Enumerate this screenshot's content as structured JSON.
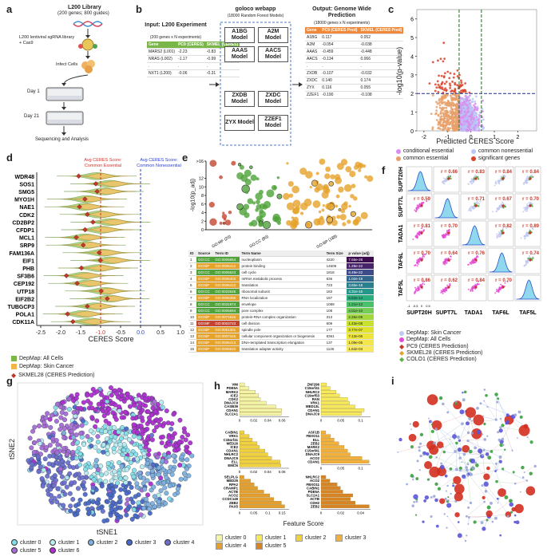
{
  "panels": {
    "a": "a",
    "b": "b",
    "c": "c",
    "d": "d",
    "e": "e",
    "f": "f",
    "g": "g",
    "h": "h",
    "i": "i"
  },
  "panel_a": {
    "library_title": "L200 Library",
    "library_sub": "(200 genes; 800 guides)",
    "lentiviral": "L200 lentiviral sgRNA library + Cas9",
    "infect": "Infect Cells",
    "day1": "Day 1",
    "day21": "Day 21",
    "seq": "Sequencing and Analysis"
  },
  "panel_b": {
    "input_title": "Input: L200 Experiment",
    "input_sub": "(200 genes x N experiments)",
    "input_headers": [
      "Gene",
      "PC9 (CERES)",
      "SKMEL (CERES)"
    ],
    "input_rows": [
      [
        "MARS2 (L001)",
        "-2.23",
        "-0.83"
      ],
      [
        "NRAS (L002)",
        "-1.17",
        "-0.99"
      ],
      [
        ".",
        ".",
        "."
      ],
      [
        "NXT1 (L200)",
        "-0.06",
        "-0.31"
      ]
    ],
    "webapp_title": "goloco webapp",
    "webapp_sub": "(18000 Random Forest Models)",
    "models": [
      "A1BG Model",
      "A2M Model",
      "AAAS Model",
      "AACS Model",
      "ZXDB Model",
      "ZXDC Model",
      "ZYX Model",
      "ZZEF1 Model"
    ],
    "output_title": "Output: Genome Wide Prediction",
    "output_sub": "(18000 genes x N experiments)",
    "output_headers": [
      "Gene",
      "PC9 (CERES Pred)",
      "SKMEL (CERES Pred)"
    ],
    "output_rows": [
      [
        "A1BG",
        "0.117",
        "0.052"
      ],
      [
        "A2M",
        "-0.054",
        "-0.038"
      ],
      [
        "AAAS",
        "-0.459",
        "-0.448"
      ],
      [
        "AACS",
        "-0.134",
        "0.066"
      ],
      [
        ".",
        ".",
        "."
      ],
      [
        "ZXDB",
        "-0.107",
        "-0.032"
      ],
      [
        "ZXDC",
        "0.140",
        "0.174"
      ],
      [
        "ZYX",
        "0.116",
        "0.055"
      ],
      [
        "ZZEF1",
        "-0.190",
        "-0.108"
      ]
    ]
  },
  "panel_c": {
    "ylabel": "-log10(p-value)",
    "xlabel": "Predicted CERES Score",
    "xticks": [
      "-2",
      "-1",
      "0",
      "1",
      "2"
    ],
    "yticks": [
      "0",
      "1",
      "2",
      "3",
      "4",
      "5",
      "6"
    ],
    "legend": [
      "conditional essential",
      "common nonessential",
      "common essential",
      "significant genes"
    ],
    "colors": {
      "cond": "#d98cf0",
      "noness": "#b9c7f5",
      "common": "#e8a06a",
      "sig": "#d9432a"
    }
  },
  "panel_d": {
    "genes": [
      "WDR48",
      "SOS1",
      "SMG5",
      "MYO1H",
      "NAE1",
      "CDK2",
      "CD2BP2",
      "CFDP1",
      "MCL1",
      "SRP9",
      "FAM136A",
      "EIF1",
      "PHB",
      "SF3B6",
      "CEP192",
      "UTP18",
      "EIF2B2",
      "TUBGCP3",
      "POLA1",
      "CDK11A"
    ],
    "avg_common_ess": "Avg CERES Score: Common Essential",
    "avg_common_noness": "Avg CERES Score: Common Nonessential",
    "xticks": [
      "-2.5",
      "-2.0",
      "-1.5",
      "-1.0",
      "-0.5",
      "0.0",
      "0.5",
      "1.0"
    ],
    "xlabel": "CERES Score",
    "legend": [
      "DepMap: All Cells",
      "DepMap: Skin Cancer",
      "SKMEL28 (CERES Prediction)"
    ]
  },
  "panel_e": {
    "ylabel": "-log10(p_adj)",
    "yticks": [
      "0",
      "2",
      "4",
      "6",
      "8",
      "10",
      "12",
      ">16"
    ],
    "groups": [
      "GO:MF (20)",
      "GO:CC (80)",
      "GO:BP (188)"
    ],
    "table_headers": [
      "ID",
      "Source",
      "Term ID",
      "Term Name",
      "Term Size",
      "p value (adj)"
    ],
    "table_rows": [
      [
        "1",
        "GO:CC",
        "GO:0005654",
        "nucleoplasm",
        "4220",
        "7.55e-28"
      ],
      [
        "2",
        "GO:BP",
        "GO:0006412",
        "protein binding",
        "14609",
        "1.29e-22"
      ],
      [
        "3",
        "GO:CC",
        "GO:0005623",
        "cell cycle",
        "1818",
        "8.49e-22"
      ],
      [
        "4",
        "GO:BP",
        "GO:0006403",
        "mRNA metabolic process",
        "836",
        "1.02e-19"
      ],
      [
        "5",
        "GO:BP",
        "GO:0006412",
        "translation",
        "723",
        "3.65e-18"
      ],
      [
        "6",
        "GO:CC",
        "GO:0022626",
        "ribosomal subunit",
        "183",
        "4.31e-16"
      ],
      [
        "7",
        "GO:BP",
        "GO:0006396",
        "RNA localization",
        "187",
        "6.52e-14"
      ],
      [
        "8",
        "GO:CC",
        "GO:0031974",
        "envelope",
        "1089",
        "1.21e-12"
      ],
      [
        "9",
        "GO:CC",
        "GO:0005694",
        "pore complex",
        "108",
        "4.01e-10"
      ],
      [
        "10",
        "GO:BP",
        "GO:0071826",
        "protein-RNA complex organization",
        "313",
        "2.26e-09"
      ],
      [
        "11",
        "GO:MF",
        "GO:0003723",
        "cell division",
        "609",
        "1.43e-08"
      ],
      [
        "12",
        "GO:BP",
        "GO:0051301",
        "spindle pole",
        "177",
        "3.77e-07"
      ],
      [
        "13",
        "GO:BP",
        "GO:0007346",
        "cellular component organization or biogenesis",
        "8361",
        "7.13e-06"
      ],
      [
        "14",
        "GO:BP",
        "GO:0006413",
        "DNA-templated transcription elongation",
        "137",
        "1.09e-05"
      ],
      [
        "15",
        "GO:BP",
        "GO:0006810",
        "translation adapter activity",
        "1136",
        "1.64e-04"
      ]
    ]
  },
  "panel_f": {
    "genes": [
      "SUPT20H",
      "SUPT7L",
      "TADA1",
      "TAF6L",
      "TAF5L"
    ],
    "r_values": [
      [
        "",
        "0.66",
        "0.83",
        "0.84",
        "0.84"
      ],
      [
        "0.59",
        "",
        "0.71",
        "0.67",
        "0.70"
      ],
      [
        "0.81",
        "0.70",
        "",
        "0.82",
        "0.89"
      ],
      [
        "0.70",
        "0.64",
        "0.76",
        "",
        "0.74"
      ],
      [
        "0.86",
        "0.62",
        "0.84",
        "0.70",
        ""
      ]
    ],
    "legend": [
      "DepMap: Skin Cancer",
      "DepMap: All Cells",
      "PC9 (CERES Prediction)",
      "SKMEL28 (CERES Prediction)",
      "COLO1 (CERES Prediction)"
    ],
    "ticks": [
      "-1",
      "-0.5",
      "0",
      "0.5"
    ]
  },
  "panel_g": {
    "ylabel": "tSNE2",
    "xlabel": "tSNE1",
    "legend": [
      "cluster 0",
      "cluster 1",
      "cluster 2",
      "cluster 3",
      "cluster 4",
      "cluster 5",
      "cluster 6"
    ],
    "colors": [
      "#84e0e8",
      "#b9eef0",
      "#7fb1e0",
      "#4a69c9",
      "#6c6fd0",
      "#a96bd6",
      "#b12fd0"
    ]
  },
  "panel_h": {
    "xlabel": "Feature Score",
    "legend": [
      "cluster 0",
      "cluster 1",
      "cluster 2",
      "cluster 3",
      "cluster 4",
      "cluster 5"
    ],
    "colors": [
      "#f2f5a6",
      "#f6ea5a",
      "#f0d23c",
      "#f2b03a",
      "#e49e2d",
      "#d88425"
    ],
    "charts": [
      {
        "genes": [
          "VIM",
          "PDE5A",
          "MARK2",
          "ICE2",
          "CDK2",
          "DNAJC9",
          "CASB39",
          "CDAN1",
          "SLC2A1"
        ],
        "ticks": [
          "0",
          "0.02",
          "0.04",
          "0.06"
        ]
      },
      {
        "genes": [
          "ZNF296",
          "C15orf41",
          "NHLRC2",
          "C19orf53",
          "RAN",
          "VRK1",
          "MED13L",
          "CDAN1",
          "DNAJC9"
        ],
        "ticks": [
          "0",
          "0.05",
          "0.1"
        ]
      },
      {
        "genes": [
          "CABIN1",
          "VRK1",
          "C15orf41",
          "MED26",
          "ICE2",
          "CDAN1",
          "NHLRC2",
          "DNAJC9",
          "ELL",
          "EMCN"
        ],
        "ticks": [
          "0",
          "0.02",
          "0.04",
          "0.06"
        ]
      },
      {
        "genes": [
          "ASF1B",
          "FBXO11",
          "ELL",
          "ZEB2",
          "MARK2",
          "C15orf41",
          "DNAJC9",
          "ACO2",
          "CDAN1"
        ],
        "ticks": [
          "0",
          "0.05",
          "0.1"
        ]
      },
      {
        "genes": [
          "SELPLG",
          "MED25",
          "RPA2",
          "CRAMP1",
          "ACTB",
          "ACO2",
          "CCDC149",
          "ZEB2",
          "PAX5"
        ],
        "ticks": [
          "0",
          "0.05",
          "0.1",
          "0.15"
        ]
      },
      {
        "genes": [
          "NHLRC2",
          "ACO2",
          "FBXO11",
          "CABIN1",
          "PDE5A",
          "SLC2A1",
          "ACTB",
          "CDH2",
          "ZEB2"
        ],
        "ticks": [
          "0",
          "0.02",
          "0.04"
        ]
      }
    ]
  }
}
